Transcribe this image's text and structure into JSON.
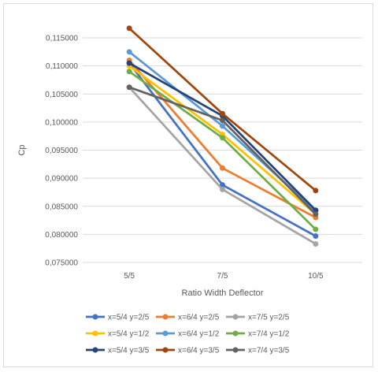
{
  "chart_data": {
    "type": "line",
    "title": "",
    "xlabel": "Ratio Width Deflector",
    "ylabel": "Cp",
    "categories": [
      "5/5",
      "7/5",
      "10/5"
    ],
    "ylim": [
      0.075,
      0.115
    ],
    "yticks": [
      0.075,
      0.08,
      0.085,
      0.09,
      0.095,
      0.1,
      0.105,
      0.11,
      0.115
    ],
    "ytick_labels": [
      "0,075000",
      "0,080000",
      "0,085000",
      "0,090000",
      "0,095000",
      "0,100000",
      "0,105000",
      "0,110000",
      "0,115000"
    ],
    "grid": "horizontal",
    "legend_position": "bottom",
    "series": [
      {
        "name": "x=5/4 y=2/5",
        "color": "#4472c4",
        "values": [
          0.1105,
          0.0888,
          0.0797
        ]
      },
      {
        "name": "x=6/4 y=2/5",
        "color": "#ed7d31",
        "values": [
          0.111,
          0.0918,
          0.083
        ]
      },
      {
        "name": "x=7/5 y=2/5",
        "color": "#a5a5a5",
        "values": [
          0.1062,
          0.088,
          0.0783
        ]
      },
      {
        "name": "x=5/4 y=1/2",
        "color": "#ffc000",
        "values": [
          0.11,
          0.0978,
          0.0836
        ]
      },
      {
        "name": "x=6/4 y=1/2",
        "color": "#5b9bd5",
        "values": [
          0.1125,
          0.0993,
          0.0842
        ]
      },
      {
        "name": "x=7/4 y=1/2",
        "color": "#70ad47",
        "values": [
          0.109,
          0.0972,
          0.0809
        ]
      },
      {
        "name": "x=5/4 y=3/5",
        "color": "#264478",
        "values": [
          0.1105,
          0.1011,
          0.0843
        ]
      },
      {
        "name": "x=6/4 y=3/5",
        "color": "#9e480e",
        "values": [
          0.1167,
          0.1015,
          0.0878
        ]
      },
      {
        "name": "x=7/4 y=3/5",
        "color": "#636363",
        "values": [
          0.1062,
          0.1003,
          0.0836
        ]
      }
    ]
  }
}
